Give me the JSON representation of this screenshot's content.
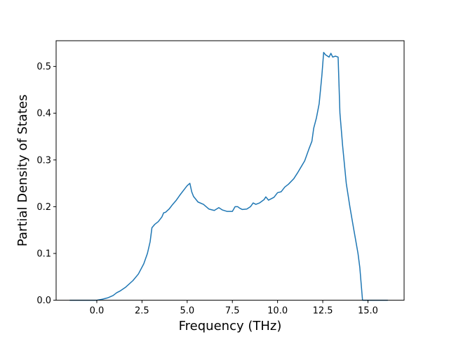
{
  "chart_data": {
    "type": "line",
    "xlabel": "Frequency (THz)",
    "ylabel": "Partial Density of States",
    "xlim": [
      -2.25,
      17.0
    ],
    "ylim": [
      0.0,
      0.555
    ],
    "xticks": [
      0.0,
      2.5,
      5.0,
      7.5,
      10.0,
      12.5,
      15.0
    ],
    "xtick_labels": [
      "0.0",
      "2.5",
      "5.0",
      "7.5",
      "10.0",
      "12.5",
      "15.0"
    ],
    "yticks": [
      0.0,
      0.1,
      0.2,
      0.3,
      0.4,
      0.5
    ],
    "ytick_labels": [
      "0.0",
      "0.1",
      "0.2",
      "0.3",
      "0.4",
      "0.5"
    ],
    "grid": false,
    "legend": "none",
    "line_color": "#1f77b4",
    "series": [
      {
        "x": [
          -1.5,
          -1.0,
          -0.5,
          0.0,
          0.3,
          0.6,
          0.9,
          1.1,
          1.3,
          1.6,
          2.0,
          2.3,
          2.6,
          2.8,
          2.95,
          3.05,
          3.2,
          3.4,
          3.6,
          3.7,
          3.8,
          4.0,
          4.2,
          4.4,
          4.6,
          4.8,
          5.0,
          5.15,
          5.25,
          5.35,
          5.6,
          5.9,
          6.2,
          6.5,
          6.75,
          6.95,
          7.2,
          7.5,
          7.65,
          7.8,
          7.9,
          8.05,
          8.3,
          8.5,
          8.65,
          8.8,
          9.0,
          9.25,
          9.35,
          9.5,
          9.8,
          10.0,
          10.2,
          10.4,
          10.6,
          10.9,
          11.1,
          11.3,
          11.5,
          11.75,
          11.9,
          12.0,
          12.15,
          12.3,
          12.45,
          12.55,
          12.65,
          12.85,
          12.95,
          13.05,
          13.2,
          13.35,
          13.45,
          13.6,
          13.8,
          14.0,
          14.2,
          14.45,
          14.55,
          14.7,
          15.0,
          15.5,
          16.1
        ],
        "y": [
          0.0,
          0.0,
          0.0,
          0.0,
          0.002,
          0.005,
          0.01,
          0.016,
          0.02,
          0.028,
          0.042,
          0.056,
          0.078,
          0.1,
          0.125,
          0.155,
          0.162,
          0.168,
          0.178,
          0.187,
          0.188,
          0.195,
          0.205,
          0.214,
          0.225,
          0.235,
          0.245,
          0.25,
          0.232,
          0.222,
          0.21,
          0.205,
          0.195,
          0.192,
          0.198,
          0.193,
          0.19,
          0.19,
          0.2,
          0.2,
          0.197,
          0.194,
          0.195,
          0.2,
          0.208,
          0.205,
          0.208,
          0.215,
          0.221,
          0.214,
          0.22,
          0.23,
          0.232,
          0.242,
          0.248,
          0.26,
          0.272,
          0.285,
          0.298,
          0.325,
          0.34,
          0.368,
          0.39,
          0.42,
          0.48,
          0.53,
          0.525,
          0.52,
          0.528,
          0.52,
          0.522,
          0.52,
          0.4,
          0.33,
          0.25,
          0.2,
          0.155,
          0.1,
          0.07,
          0.0,
          0.0,
          0.0,
          0.0
        ]
      }
    ]
  }
}
